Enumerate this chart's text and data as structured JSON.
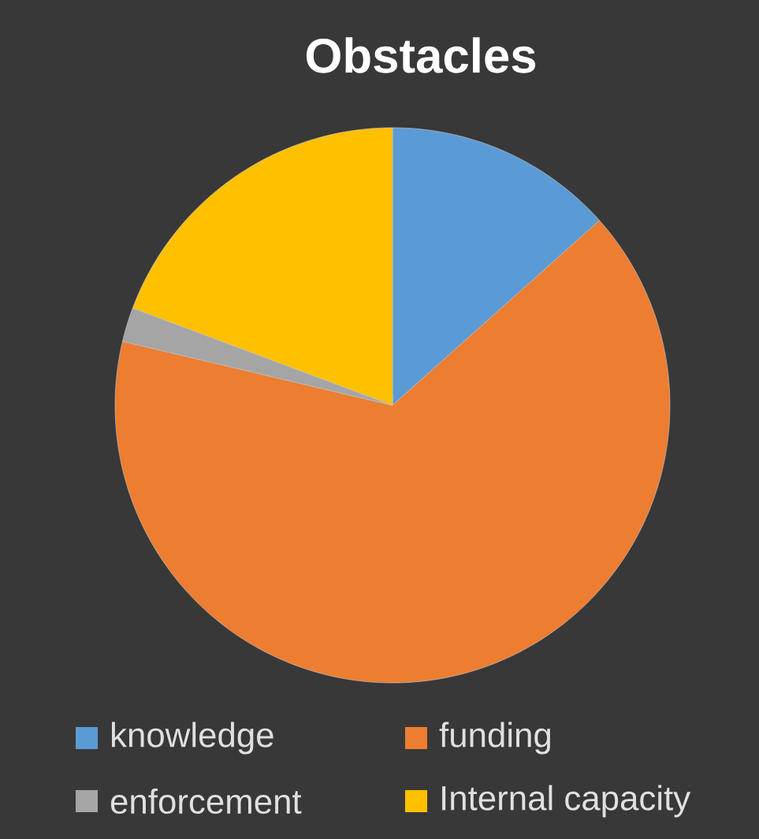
{
  "chart_data": {
    "type": "pie",
    "title": "Obstacles",
    "categories": [
      "knowledge",
      "funding",
      "enforcement",
      "Internal capacity"
    ],
    "values": [
      13.4,
      65.3,
      2.0,
      19.3
    ],
    "colors": [
      "#5b9bd5",
      "#ed7d31",
      "#a5a5a5",
      "#ffc000"
    ],
    "legend": "bottom"
  }
}
